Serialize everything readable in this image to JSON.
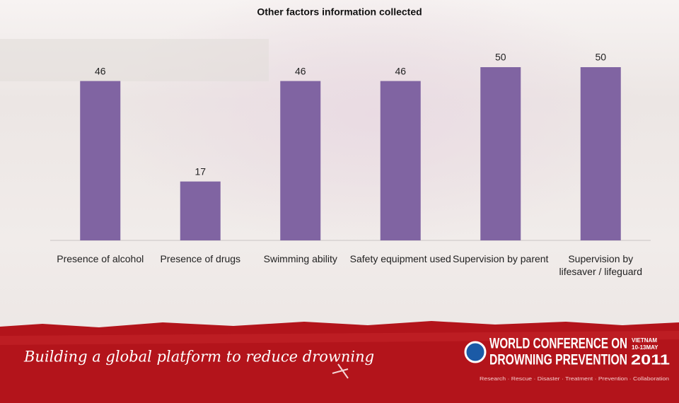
{
  "chart_data": {
    "type": "bar",
    "title": "Other factors information collected",
    "categories": [
      "Presence of alcohol",
      "Presence of drugs",
      "Swimming ability",
      "Safety equipment used",
      "Supervision by parent",
      "Supervision by lifesaver / lifeguard"
    ],
    "values": [
      46,
      17,
      46,
      46,
      50,
      50
    ],
    "color": "#8064a2"
  },
  "footer": {
    "slogan": "Building a global platform to reduce drowning",
    "logo_line1": "WORLD CONFERENCE ON",
    "logo_line2": "DROWNING PREVENTION",
    "country": "VIETNAM",
    "dates": "10-13MAY",
    "year": "2011",
    "tagline": "Research · Rescue · Disaster · Treatment · Prevention · Collaboration"
  }
}
